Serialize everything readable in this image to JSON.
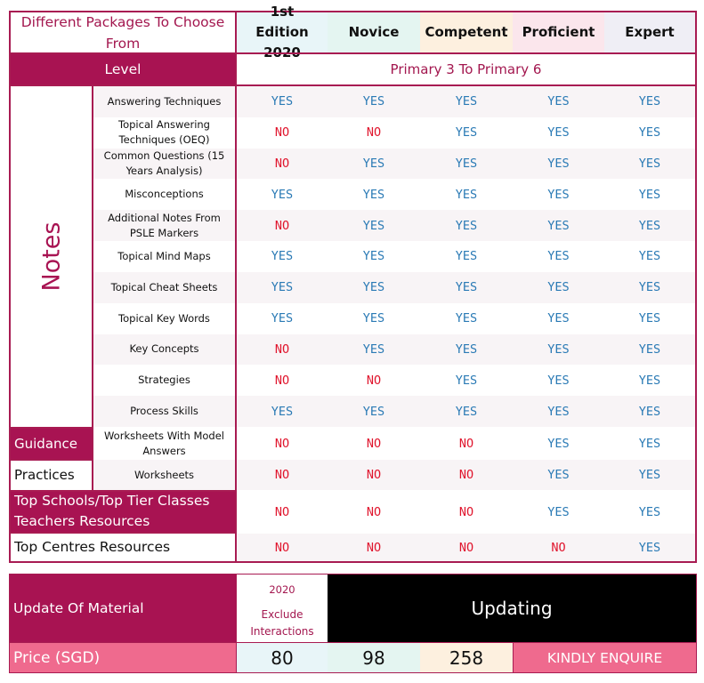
{
  "header": {
    "title": "Different Packages To Choose From",
    "packages": [
      {
        "name": "1st Edition 2020",
        "bg": "#e8f5f8"
      },
      {
        "name": "Novice",
        "bg": "#e4f5f1"
      },
      {
        "name": "Competent",
        "bg": "#fdf0df"
      },
      {
        "name": "Proficient",
        "bg": "#fbe6ec"
      },
      {
        "name": "Expert",
        "bg": "#efeef5"
      }
    ]
  },
  "level": {
    "label": "Level",
    "value": "Primary 3 To Primary 6"
  },
  "categories": {
    "notes": "Notes",
    "guidance": "Guidance",
    "practices": "Practices",
    "top_schools": "Top Schools/Top Tier Classes Teachers Resources",
    "top_centres": "Top Centres Resources"
  },
  "rows": [
    {
      "category": "Notes",
      "item": "Answering Techniques",
      "values": [
        "YES",
        "YES",
        "YES",
        "YES",
        "YES"
      ]
    },
    {
      "category": "Notes",
      "item": "Topical Answering Techniques (OEQ)",
      "values": [
        "NO",
        "NO",
        "YES",
        "YES",
        "YES"
      ]
    },
    {
      "category": "Notes",
      "item": "Common Questions (15 Years Analysis)",
      "values": [
        "NO",
        "YES",
        "YES",
        "YES",
        "YES"
      ]
    },
    {
      "category": "Notes",
      "item": "Misconceptions",
      "values": [
        "YES",
        "YES",
        "YES",
        "YES",
        "YES"
      ]
    },
    {
      "category": "Notes",
      "item": "Additional Notes From PSLE Markers",
      "values": [
        "NO",
        "YES",
        "YES",
        "YES",
        "YES"
      ]
    },
    {
      "category": "Notes",
      "item": "Topical Mind Maps",
      "values": [
        "YES",
        "YES",
        "YES",
        "YES",
        "YES"
      ]
    },
    {
      "category": "Notes",
      "item": "Topical Cheat Sheets",
      "values": [
        "YES",
        "YES",
        "YES",
        "YES",
        "YES"
      ]
    },
    {
      "category": "Notes",
      "item": "Topical Key Words",
      "values": [
        "YES",
        "YES",
        "YES",
        "YES",
        "YES"
      ]
    },
    {
      "category": "Notes",
      "item": "Key Concepts",
      "values": [
        "NO",
        "YES",
        "YES",
        "YES",
        "YES"
      ]
    },
    {
      "category": "Notes",
      "item": "Strategies",
      "values": [
        "NO",
        "NO",
        "YES",
        "YES",
        "YES"
      ]
    },
    {
      "category": "Notes",
      "item": "Process Skills",
      "values": [
        "YES",
        "YES",
        "YES",
        "YES",
        "YES"
      ]
    },
    {
      "category": "Guidance",
      "item": "Worksheets With Model Answers",
      "values": [
        "NO",
        "NO",
        "NO",
        "YES",
        "YES"
      ]
    },
    {
      "category": "Practices",
      "item": "Worksheets",
      "values": [
        "NO",
        "NO",
        "NO",
        "YES",
        "YES"
      ]
    },
    {
      "category": "Top Schools/Top Tier Classes Teachers Resources",
      "item": "",
      "values": [
        "NO",
        "NO",
        "NO",
        "YES",
        "YES"
      ]
    },
    {
      "category": "Top Centres Resources",
      "item": "",
      "values": [
        "NO",
        "NO",
        "NO",
        "NO",
        "YES"
      ]
    }
  ],
  "update": {
    "label": "Update Of Material",
    "first_edition_year": "2020",
    "first_edition_note": "Exclude Interactions",
    "others": "Updating"
  },
  "price": {
    "label": "Price (SGD)",
    "values": [
      "80",
      "98",
      "258"
    ],
    "enquire": "KINDLY ENQUIRE"
  },
  "colors": {
    "brand": "#a81352",
    "price_pink": "#ef6a8e",
    "yes": "#2a7ab5",
    "no": "#e0152d",
    "updating_bg": "#000000"
  }
}
